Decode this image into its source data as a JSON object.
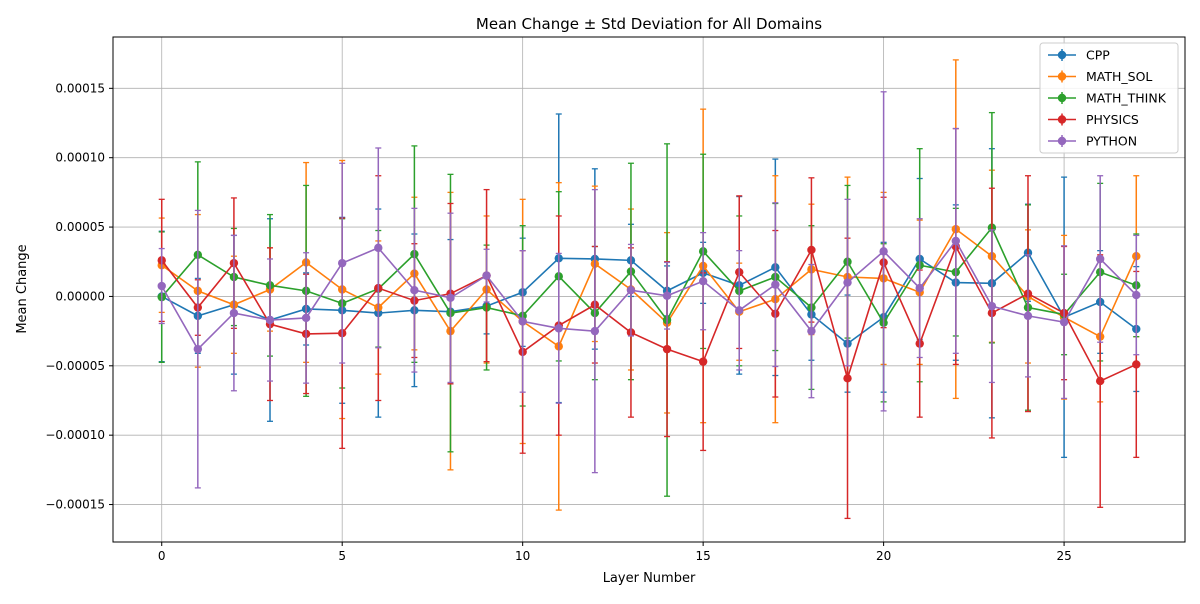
{
  "chart_data": {
    "type": "line",
    "title": "Mean Change ± Std Deviation for All Domains",
    "xlabel": "Layer Number",
    "ylabel": "Mean Change",
    "xlim": [
      -1.35,
      28.35
    ],
    "ylim": [
      -0.000177,
      0.000187
    ],
    "x_ticks": [
      0,
      5,
      10,
      15,
      20,
      25
    ],
    "y_ticks": [
      -0.00015,
      -0.0001,
      -5e-05,
      0,
      5e-05,
      0.0001,
      0.00015
    ],
    "y_tick_labels": [
      "−0.00015",
      "−0.00010",
      "−0.00005",
      "0.00000",
      "0.00005",
      "0.00010",
      "0.00015"
    ],
    "grid": true,
    "legend_position": "top-right",
    "x": [
      0,
      1,
      2,
      3,
      4,
      5,
      6,
      7,
      8,
      9,
      10,
      11,
      12,
      13,
      14,
      15,
      16,
      17,
      18,
      19,
      20,
      21,
      22,
      23,
      24,
      25,
      26,
      27
    ],
    "series": [
      {
        "name": "CPP",
        "color": "#1f77b4",
        "values": [
          0.0,
          -1.4e-05,
          -6e-06,
          -1.7e-05,
          -9e-06,
          -1e-05,
          -1.2e-05,
          -1e-05,
          -1.1e-05,
          -7e-06,
          3e-06,
          2.75e-05,
          2.7e-05,
          2.6e-05,
          4e-06,
          1.7e-05,
          8e-06,
          2.1e-05,
          -1.3e-05,
          -3.4e-05,
          -1.5e-05,
          2.7e-05,
          1e-05,
          9.5e-06,
          3.15e-05,
          -1.5e-05,
          -4e-06,
          -2.35e-05
        ],
        "errors": [
          4.7e-05,
          2.7e-05,
          5e-05,
          7.3e-05,
          2.6e-05,
          6.7e-05,
          7.5e-05,
          5.5e-05,
          5.2e-05,
          2e-05,
          3.9e-05,
          0.000104,
          6.5e-05,
          2.6e-05,
          1.8e-05,
          2.2e-05,
          6.4e-05,
          7.8e-05,
          3.3e-05,
          3.5e-05,
          5.4e-05,
          5.8e-05,
          5.6e-05,
          9.7e-05,
          3.5e-05,
          0.000101,
          3.7e-05,
          4.5e-05
        ]
      },
      {
        "name": "MATH_SOL",
        "color": "#ff7f0e",
        "values": [
          2.25e-05,
          4e-06,
          -6e-06,
          5e-06,
          2.45e-05,
          5e-06,
          -8e-06,
          1.65e-05,
          -2.5e-05,
          5e-06,
          -1.8e-05,
          -3.6e-05,
          2.35e-05,
          5e-06,
          -1.9e-05,
          2.2e-05,
          -1.1e-05,
          -2e-06,
          1.95e-05,
          1.4e-05,
          1.3e-05,
          3e-06,
          4.85e-05,
          2.9e-05,
          0.0,
          -1.5e-05,
          -2.9e-05,
          2.9e-05
        ],
        "errors": [
          3.4e-05,
          5.5e-05,
          3.5e-05,
          3e-05,
          7.2e-05,
          9.3e-05,
          4.8e-05,
          5.5e-05,
          0.0001,
          5.3e-05,
          8.8e-05,
          0.000118,
          5.6e-05,
          5.8e-05,
          6.5e-05,
          0.000113,
          3.5e-05,
          8.9e-05,
          4.7e-05,
          7.2e-05,
          6.2e-05,
          5.2e-05,
          0.000122,
          6.2e-05,
          4.8e-05,
          5.9e-05,
          4.7e-05,
          5.8e-05
        ]
      },
      {
        "name": "MATH_THINK",
        "color": "#2ca02c",
        "values": [
          -5e-07,
          3e-05,
          1.4e-05,
          8e-06,
          4e-06,
          -5e-06,
          5.5e-06,
          3.05e-05,
          -1.2e-05,
          -8e-06,
          -1.4e-05,
          1.45e-05,
          -1.2e-05,
          1.8e-05,
          -1.7e-05,
          3.25e-05,
          4e-06,
          1.4e-05,
          -8e-06,
          2.5e-05,
          -1.9e-05,
          2.25e-05,
          1.75e-05,
          4.95e-05,
          -8e-06,
          -1.3e-05,
          1.75e-05,
          8e-06
        ],
        "errors": [
          4.7e-05,
          6.7e-05,
          3.5e-05,
          5.1e-05,
          7.6e-05,
          6.1e-05,
          4.2e-05,
          7.8e-05,
          0.0001,
          4.5e-05,
          6.5e-05,
          6.1e-05,
          4.8e-05,
          7.8e-05,
          0.000127,
          7e-05,
          5.4e-05,
          5.3e-05,
          5.9e-05,
          5.5e-05,
          5.7e-05,
          8.4e-05,
          4.6e-05,
          8.3e-05,
          7.4e-05,
          2.9e-05,
          6.4e-05,
          3.7e-05
        ]
      },
      {
        "name": "PHYSICS",
        "color": "#d62728",
        "values": [
          2.6e-05,
          -8e-06,
          2.4e-05,
          -2e-05,
          -2.7e-05,
          -2.65e-05,
          6e-06,
          -3e-06,
          2e-06,
          1.5e-05,
          -4e-05,
          -2.1e-05,
          -6e-06,
          -2.6e-05,
          -3.8e-05,
          -4.7e-05,
          1.75e-05,
          -1.25e-05,
          3.35e-05,
          -5.9e-05,
          2.45e-05,
          -3.4e-05,
          3.6e-05,
          -1.2e-05,
          2e-06,
          -1.2e-05,
          -6.1e-05,
          -4.9e-05
        ],
        "errors": [
          4.4e-05,
          2e-05,
          4.7e-05,
          5.5e-05,
          4.3e-05,
          8.3e-05,
          8.1e-05,
          4.1e-05,
          6.5e-05,
          6.2e-05,
          7.3e-05,
          7.9e-05,
          4.2e-05,
          6.1e-05,
          6.3e-05,
          6.4e-05,
          5.5e-05,
          6e-05,
          5.2e-05,
          0.000101,
          4.7e-05,
          5.3e-05,
          8.5e-05,
          9e-05,
          8.5e-05,
          4.8e-05,
          9.1e-05,
          6.7e-05
        ]
      },
      {
        "name": "PYTHON",
        "color": "#9467bd",
        "values": [
          7.5e-06,
          -3.8e-05,
          -1.2e-05,
          -1.7e-05,
          -1.55e-05,
          2.4e-05,
          3.5e-05,
          4.5e-06,
          -1e-06,
          1.5e-05,
          -1.8e-05,
          -2.3e-05,
          -2.5e-05,
          4.5e-06,
          5e-07,
          1.1e-05,
          -1e-05,
          8.5e-06,
          -2.5e-05,
          1e-05,
          3.25e-05,
          6e-06,
          4e-05,
          -7e-06,
          -1.4e-05,
          -1.85e-05,
          2.7e-05,
          1e-06
        ],
        "errors": [
          2.7e-05,
          0.0001,
          5.6e-05,
          4.4e-05,
          4.7e-05,
          7.2e-05,
          7.2e-05,
          5.9e-05,
          6.1e-05,
          1.9e-05,
          5.1e-05,
          5.4e-05,
          0.000102,
          3.3e-05,
          2.4e-05,
          3.5e-05,
          4.3e-05,
          5.9e-05,
          4.8e-05,
          6e-05,
          0.000115,
          5e-05,
          8.1e-05,
          5.5e-05,
          4.4e-05,
          5.5e-05,
          6e-05,
          4.3e-05
        ]
      }
    ]
  }
}
